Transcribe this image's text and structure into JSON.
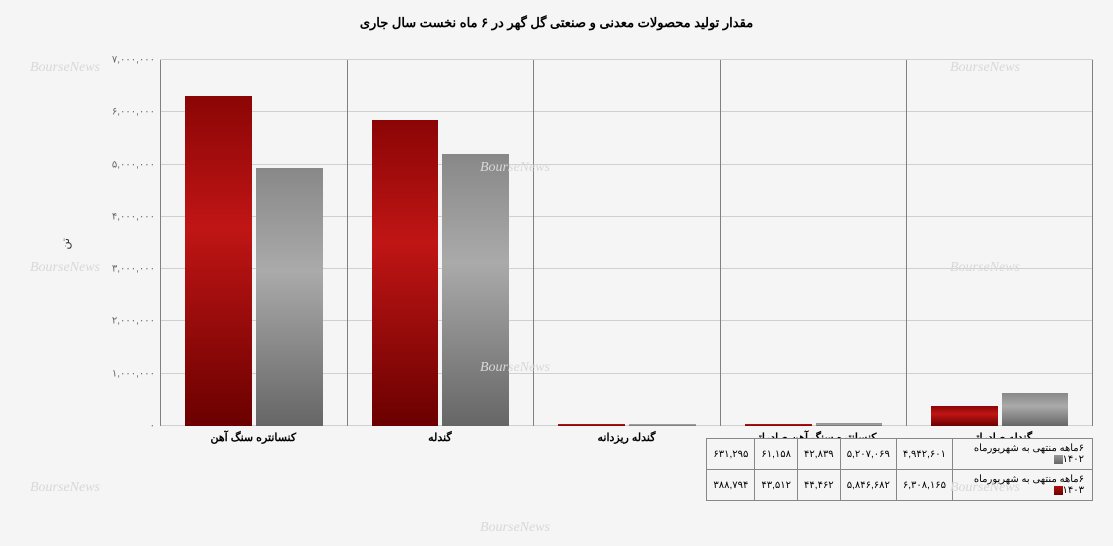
{
  "chart": {
    "type": "bar",
    "title": "مقدار تولید محصولات معدنی و صنعتی گل گهر در ۶ ماه نخست سال جاری",
    "title_fontsize": 13,
    "ylabel": "تن",
    "ylim": [
      0,
      7000000
    ],
    "ytick_step": 1000000,
    "yticks": [
      "۰",
      "۱,۰۰۰,۰۰۰",
      "۲,۰۰۰,۰۰۰",
      "۳,۰۰۰,۰۰۰",
      "۴,۰۰۰,۰۰۰",
      "۵,۰۰۰,۰۰۰",
      "۶,۰۰۰,۰۰۰",
      "۷,۰۰۰,۰۰۰"
    ],
    "background_color": "#f5f5f5",
    "grid_color": "#d0d0d0",
    "categories": [
      "کنسانتره سنگ آهن",
      "گندله",
      "گندله ریزدانه",
      "کنسانتره سنگ آهن صادراتی",
      "گندله صادراتی"
    ],
    "series": [
      {
        "name": "۶ماهه منتهی به شهریورماه ۱۴۰۲",
        "color_top": "#888888",
        "color_bottom": "#666666",
        "swatch_class": "swatch-gray",
        "bar_class": "bar-gray",
        "values": [
          4942601,
          5207069,
          42839,
          61158,
          631295
        ],
        "labels": [
          "۴,۹۴۲,۶۰۱",
          "۵,۲۰۷,۰۶۹",
          "۴۲,۸۳۹",
          "۶۱,۱۵۸",
          "۶۳۱,۲۹۵"
        ]
      },
      {
        "name": "۶ماهه منتهی به شهریورماه ۱۴۰۳",
        "color_top": "#8b0505",
        "color_bottom": "#6b0000",
        "swatch_class": "swatch-red",
        "bar_class": "bar-red",
        "values": [
          6308165,
          5846682,
          44462,
          43512,
          388794
        ],
        "labels": [
          "۶,۳۰۸,۱۶۵",
          "۵,۸۴۶,۶۸۲",
          "۴۴,۴۶۲",
          "۴۳,۵۱۲",
          "۳۸۸,۷۹۴"
        ]
      }
    ],
    "watermark_text": "BourseNews",
    "watermark_color": "#d8d8d8"
  }
}
